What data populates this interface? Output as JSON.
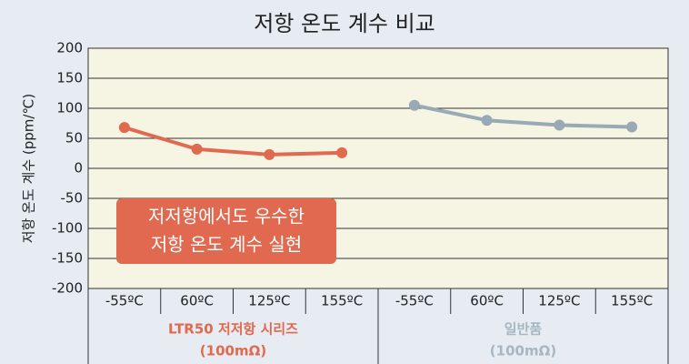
{
  "chart_data": {
    "type": "line",
    "title": "저항 온도 계수 비교",
    "y_label": "저항 온도 계수 (ppm/℃)",
    "categories": [
      "-55ºC",
      "60ºC",
      "125ºC",
      "155ºC",
      "-55ºC",
      "60ºC",
      "125ºC",
      "155ºC"
    ],
    "series": [
      {
        "color": "#e0694f",
        "values": [
          68,
          32,
          23,
          26,
          null,
          null,
          null,
          null
        ]
      },
      {
        "color": "#97aab5",
        "values": [
          null,
          null,
          null,
          null,
          105,
          80,
          72,
          69
        ]
      }
    ],
    "groups": [
      {
        "label": "LTR50 저저항 시리즈",
        "sublabel": "(100mΩ)",
        "color": "#e0694f"
      },
      {
        "label": "일반품",
        "sublabel": "(100mΩ)",
        "color": "#a7b6c0"
      }
    ],
    "annotation": {
      "lines": [
        "저저항에서도 우수한",
        "저항 온도 계수 실현"
      ],
      "color": "#e0694f"
    },
    "ylim": [
      -200,
      200
    ],
    "yticks": [
      -200,
      -150,
      -100,
      -50,
      0,
      50,
      100,
      150,
      200
    ],
    "grid": true
  }
}
